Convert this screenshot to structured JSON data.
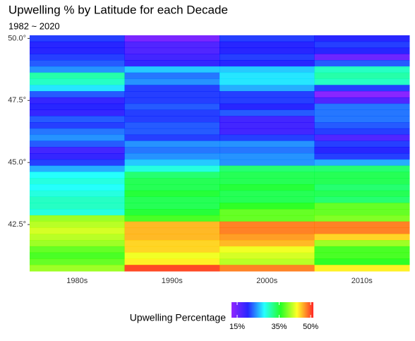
{
  "chart_data": {
    "type": "heatmap",
    "title": "Upwelling % by Latitude for each Decade",
    "subtitle": "1982 ~ 2020",
    "categories": [
      "1980s",
      "1990s",
      "2000s",
      "2010s"
    ],
    "y": [
      50.0,
      49.75,
      49.5,
      49.25,
      49.0,
      48.75,
      48.5,
      48.25,
      48.0,
      47.75,
      47.5,
      47.25,
      47.0,
      46.75,
      46.5,
      46.25,
      46.0,
      45.75,
      45.5,
      45.25,
      45.0,
      44.75,
      44.5,
      44.25,
      44.0,
      43.75,
      43.5,
      43.25,
      43.0,
      42.75,
      42.5,
      42.25,
      42.0,
      41.75,
      41.5,
      41.25,
      41.0,
      40.75
    ],
    "values": [
      [
        21,
        20,
        20,
        21,
        22,
        24,
        31,
        30,
        27,
        22,
        19,
        20,
        19,
        22,
        21,
        23,
        24,
        22,
        18,
        19,
        21,
        25,
        28,
        29,
        28,
        29,
        30,
        30,
        29,
        40,
        41,
        42,
        41,
        40,
        38,
        37,
        38,
        40
      ],
      [
        14,
        17,
        17,
        18,
        19,
        26,
        23,
        24,
        21,
        21,
        21,
        22,
        21,
        21,
        22,
        22,
        21,
        24,
        23,
        24,
        26,
        29,
        33,
        34,
        34,
        35,
        34,
        34,
        35,
        37,
        46,
        46,
        46,
        45,
        45,
        43,
        44,
        50
      ],
      [
        21,
        20,
        20,
        21,
        20,
        26,
        27,
        27,
        25,
        21,
        21,
        20,
        22,
        18,
        18,
        18,
        21,
        24,
        23,
        24,
        24,
        33,
        34,
        34,
        35,
        34,
        34,
        36,
        38,
        38,
        48,
        48,
        47,
        46,
        43,
        42,
        41,
        48
      ],
      [
        20,
        21,
        20,
        15,
        22,
        30,
        31,
        30,
        21,
        13,
        17,
        23,
        23,
        23,
        22,
        21,
        17,
        21,
        20,
        21,
        25,
        33,
        34,
        34,
        33,
        34,
        33,
        38,
        38,
        39,
        48,
        48,
        45,
        40,
        37,
        37,
        36,
        44
      ]
    ],
    "ylim": [
      40.625,
      50.125
    ],
    "yticks": [
      {
        "value": 50,
        "label": "50.0°"
      },
      {
        "value": 47.5,
        "label": "47.5°"
      },
      {
        "value": 45,
        "label": "45.0°"
      },
      {
        "value": 42.5,
        "label": "42.5°"
      }
    ],
    "colors": [
      "#7F00FF",
      "#0000FF",
      "#00FFFF",
      "#00FF00",
      "#FFFF00",
      "#FF0000"
    ],
    "colorbar": {
      "title": "Upwelling Percentage",
      "lim": [
        12.3,
        51.3
      ],
      "ticks": [
        {
          "value": 15,
          "label": "15%"
        },
        {
          "value": 35,
          "label": "35%"
        },
        {
          "value": 50,
          "label": "50%"
        }
      ]
    }
  }
}
